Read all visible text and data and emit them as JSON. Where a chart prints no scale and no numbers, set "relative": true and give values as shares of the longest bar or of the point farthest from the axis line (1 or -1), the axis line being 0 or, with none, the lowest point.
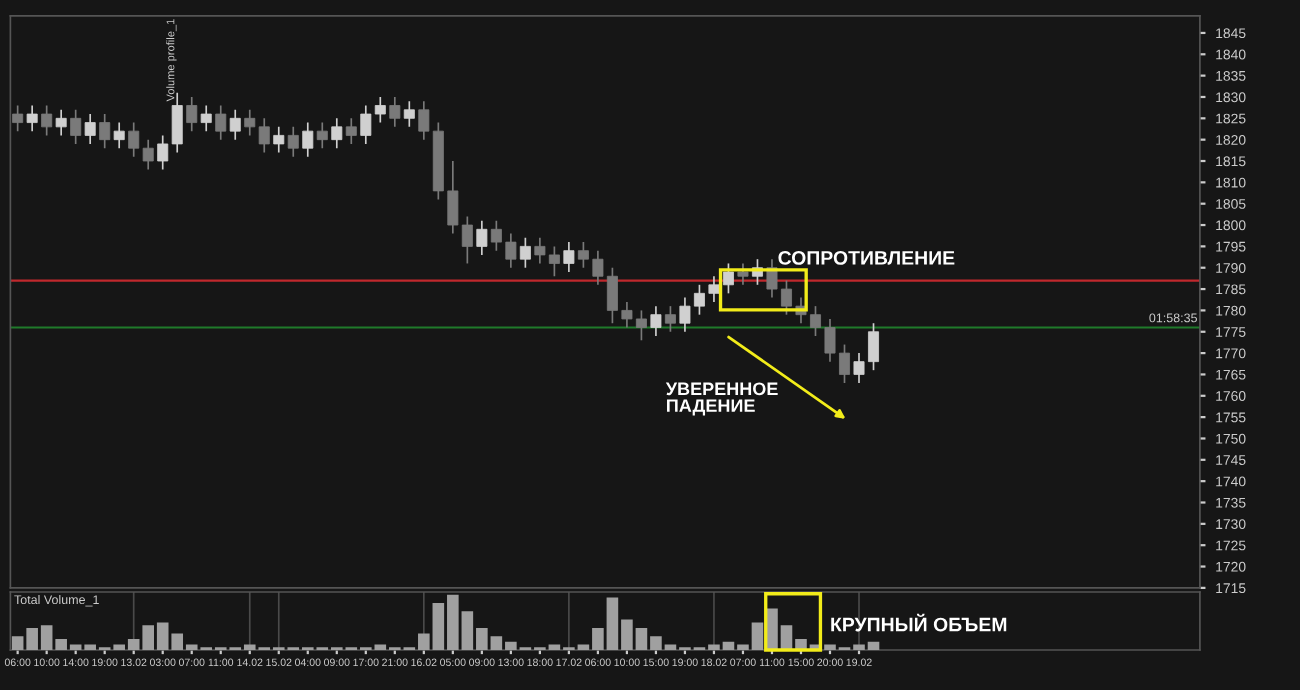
{
  "chart_data": [
    {
      "type": "candlestick",
      "categories": [
        null,
        null,
        null,
        null,
        null,
        null,
        null,
        null,
        null,
        null,
        null,
        null,
        null,
        null,
        null,
        null,
        null,
        null,
        null,
        null,
        null,
        null,
        null,
        null,
        null,
        null,
        null,
        null,
        null,
        null,
        null,
        null,
        null,
        null,
        null,
        null,
        null,
        null,
        null,
        null,
        null,
        null,
        null,
        null,
        null,
        null,
        null,
        null,
        null,
        null,
        null,
        null,
        null,
        null,
        null,
        null,
        null,
        null,
        null,
        null,
        null,
        null,
        null,
        null,
        null,
        null,
        null,
        null,
        null,
        null,
        null,
        null,
        null,
        null,
        null,
        null,
        null,
        null,
        null,
        null,
        null,
        null
      ],
      "tick_labels": "y",
      "ohlc": [
        [
          1826,
          1828,
          1822,
          1824
        ],
        [
          1824,
          1828,
          1822,
          1826
        ],
        [
          1826,
          1828,
          1821,
          1823
        ],
        [
          1823,
          1827,
          1821,
          1825
        ],
        [
          1825,
          1827,
          1819,
          1821
        ],
        [
          1821,
          1826,
          1819,
          1824
        ],
        [
          1824,
          1826,
          1818,
          1820
        ],
        [
          1820,
          1824,
          1818,
          1822
        ],
        [
          1822,
          1824,
          1816,
          1818
        ],
        [
          1818,
          1820,
          1813,
          1815
        ],
        [
          1815,
          1821,
          1813,
          1819
        ],
        [
          1819,
          1831,
          1817,
          1828
        ],
        [
          1828,
          1830,
          1822,
          1824
        ],
        [
          1824,
          1828,
          1822,
          1826
        ],
        [
          1826,
          1828,
          1820,
          1822
        ],
        [
          1822,
          1827,
          1820,
          1825
        ],
        [
          1825,
          1827,
          1821,
          1823
        ],
        [
          1823,
          1825,
          1817,
          1819
        ],
        [
          1819,
          1823,
          1817,
          1821
        ],
        [
          1821,
          1823,
          1816,
          1818
        ],
        [
          1818,
          1824,
          1816,
          1822
        ],
        [
          1822,
          1824,
          1818,
          1820
        ],
        [
          1820,
          1825,
          1818,
          1823
        ],
        [
          1823,
          1825,
          1819,
          1821
        ],
        [
          1821,
          1828,
          1819,
          1826
        ],
        [
          1826,
          1830,
          1824,
          1828
        ],
        [
          1828,
          1830,
          1823,
          1825
        ],
        [
          1825,
          1829,
          1823,
          1827
        ],
        [
          1827,
          1829,
          1820,
          1822
        ],
        [
          1822,
          1824,
          1806,
          1808
        ],
        [
          1808,
          1815,
          1798,
          1800
        ],
        [
          1800,
          1802,
          1791,
          1795
        ],
        [
          1795,
          1801,
          1793,
          1799
        ],
        [
          1799,
          1801,
          1794,
          1796
        ],
        [
          1796,
          1798,
          1790,
          1792
        ],
        [
          1792,
          1797,
          1790,
          1795
        ],
        [
          1795,
          1797,
          1791,
          1793
        ],
        [
          1793,
          1795,
          1788,
          1791
        ],
        [
          1791,
          1796,
          1789,
          1794
        ],
        [
          1794,
          1796,
          1790,
          1792
        ],
        [
          1792,
          1794,
          1786,
          1788
        ],
        [
          1788,
          1790,
          1777,
          1780
        ],
        [
          1780,
          1782,
          1776,
          1778
        ],
        [
          1778,
          1780,
          1773,
          1776
        ],
        [
          1776,
          1781,
          1774,
          1779
        ],
        [
          1779,
          1781,
          1775,
          1777
        ],
        [
          1777,
          1783,
          1775,
          1781
        ],
        [
          1781,
          1786,
          1779,
          1784
        ],
        [
          1784,
          1788,
          1782,
          1786
        ],
        [
          1786,
          1791,
          1784,
          1789
        ],
        [
          1789,
          1791,
          1786,
          1788
        ],
        [
          1788,
          1792,
          1786,
          1790
        ],
        [
          1790,
          1792,
          1783,
          1785
        ],
        [
          1785,
          1787,
          1779,
          1781
        ],
        [
          1781,
          1783,
          1777,
          1779
        ],
        [
          1779,
          1781,
          1774,
          1776
        ],
        [
          1776,
          1778,
          1768,
          1770
        ],
        [
          1770,
          1772,
          1763,
          1765
        ],
        [
          1765,
          1770,
          1763,
          1768
        ],
        [
          1768,
          1777,
          1766,
          1775
        ],
        null,
        null,
        null,
        null,
        null,
        null,
        null,
        null,
        null,
        null,
        null,
        null,
        null,
        null,
        null,
        null,
        null,
        null,
        null,
        null,
        null,
        null
      ],
      "colors": [
        "#7a7a7a",
        "#d0d0d0",
        "#7a7a7a",
        "#d0d0d0",
        "#7a7a7a",
        "#d0d0d0",
        "#7a7a7a",
        "#d0d0d0",
        "#7a7a7a",
        "#7a7a7a",
        "#d0d0d0",
        "#d0d0d0",
        "#7a7a7a",
        "#d0d0d0",
        "#7a7a7a",
        "#d0d0d0",
        "#7a7a7a",
        "#7a7a7a",
        "#d0d0d0",
        "#7a7a7a",
        "#d0d0d0",
        "#7a7a7a",
        "#d0d0d0",
        "#7a7a7a",
        "#d0d0d0",
        "#d0d0d0",
        "#7a7a7a",
        "#d0d0d0",
        "#7a7a7a",
        "#7a7a7a",
        "#7a7a7a",
        "#7a7a7a",
        "#d0d0d0",
        "#7a7a7a",
        "#7a7a7a",
        "#d0d0d0",
        "#7a7a7a",
        "#7a7a7a",
        "#d0d0d0",
        "#7a7a7a",
        "#7a7a7a",
        "#7a7a7a",
        "#7a7a7a",
        "#7a7a7a",
        "#d0d0d0",
        "#7a7a7a",
        "#d0d0d0",
        "#d0d0d0",
        "#d0d0d0",
        "#d0d0d0",
        "#7a7a7a",
        "#d0d0d0",
        "#7a7a7a",
        "#7a7a7a",
        "#7a7a7a",
        "#7a7a7a",
        "#7a7a7a",
        "#7a7a7a",
        "#d0d0d0",
        "#d0d0d0",
        null,
        null,
        null,
        null,
        null,
        null,
        null,
        null,
        null,
        null,
        null,
        null,
        null,
        null,
        null,
        null,
        null,
        null,
        null,
        null,
        null,
        null
      ],
      "ylim": [
        1715,
        1849
      ],
      "yticks": [
        1715,
        1720,
        1725,
        1730,
        1735,
        1740,
        1745,
        1750,
        1755,
        1760,
        1765,
        1770,
        1775,
        1780,
        1785,
        1790,
        1795,
        1800,
        1805,
        1810,
        1815,
        1820,
        1825,
        1830,
        1835,
        1840,
        1845
      ],
      "ref_lines": [
        {
          "axis": "y",
          "value": 1787,
          "color": "#c0282d"
        },
        {
          "axis": "y",
          "value": 1776,
          "color": "#1f7a2a"
        }
      ],
      "annotations": [
        "СОПРОТИВЛЕНИЕ",
        "УВЕРЕННОЕ\nПАДЕНИЕ",
        "Volume profile_1",
        "01:58:35"
      ]
    },
    {
      "type": "bar",
      "color": "#a0a0a0",
      "relative": true,
      "title": "Total Volume_1",
      "categories": [
        "06:00",
        null,
        "10:00",
        null,
        "14:00",
        null,
        "19:00",
        null,
        "13.02",
        null,
        "03:00",
        null,
        "07:00",
        null,
        "11:00",
        null,
        "14.02",
        null,
        "15.02",
        null,
        "04:00",
        null,
        "09:00",
        null,
        "17:00",
        null,
        "21:00",
        null,
        "16.02",
        null,
        "05:00",
        null,
        "09:00",
        null,
        "13:00",
        null,
        "18:00",
        null,
        "17.02",
        null,
        "06:00",
        null,
        "10:00",
        null,
        "15:00",
        null,
        "19:00",
        null,
        "18.02",
        null,
        "07:00",
        null,
        "11:00",
        null,
        "15:00",
        null,
        "20:00",
        null,
        "19.02",
        null,
        null,
        null,
        null,
        null,
        null,
        null,
        null,
        null,
        null,
        null,
        null,
        null,
        null,
        null,
        null,
        null,
        null,
        null,
        null,
        null,
        null,
        null
      ],
      "ref_lines": [
        {
          "axis": "x",
          "value": "13.02",
          "color": "#4a4a4a"
        },
        {
          "axis": "x",
          "value": "14.02",
          "color": "#4a4a4a"
        },
        {
          "axis": "x",
          "value": "15.02",
          "color": "#4a4a4a"
        },
        {
          "axis": "x",
          "value": "16.02",
          "color": "#4a4a4a"
        },
        {
          "axis": "x",
          "value": "17.02",
          "color": "#4a4a4a"
        },
        {
          "axis": "x",
          "value": "18.02",
          "color": "#4a4a4a"
        },
        {
          "axis": "x",
          "value": "19.02",
          "color": "#4a4a4a"
        }
      ],
      "values": [
        0.25,
        0.4,
        0.45,
        0.2,
        0.1,
        0.1,
        0.05,
        0.1,
        0.2,
        0.45,
        0.5,
        0.3,
        0.1,
        0.05,
        0.05,
        0.05,
        0.1,
        0.05,
        0.05,
        0.05,
        0.05,
        0.05,
        0.05,
        0.05,
        0.05,
        0.1,
        0.05,
        0.05,
        0.3,
        0.85,
        1.0,
        0.7,
        0.4,
        0.25,
        0.15,
        0.05,
        0.05,
        0.1,
        0.05,
        0.1,
        0.4,
        0.95,
        0.55,
        0.4,
        0.25,
        0.1,
        0.05,
        0.05,
        0.1,
        0.15,
        0.1,
        0.5,
        0.75,
        0.45,
        0.2,
        0.1,
        0.1,
        0.05,
        0.1,
        0.15,
        null,
        null,
        null,
        null,
        null,
        null,
        null,
        null,
        null,
        null,
        null,
        null,
        null,
        null,
        null,
        null,
        null,
        null,
        null,
        null,
        null,
        null
      ],
      "annotations": [
        "КРУПНЫЙ ОБЪЕМ"
      ]
    }
  ]
}
